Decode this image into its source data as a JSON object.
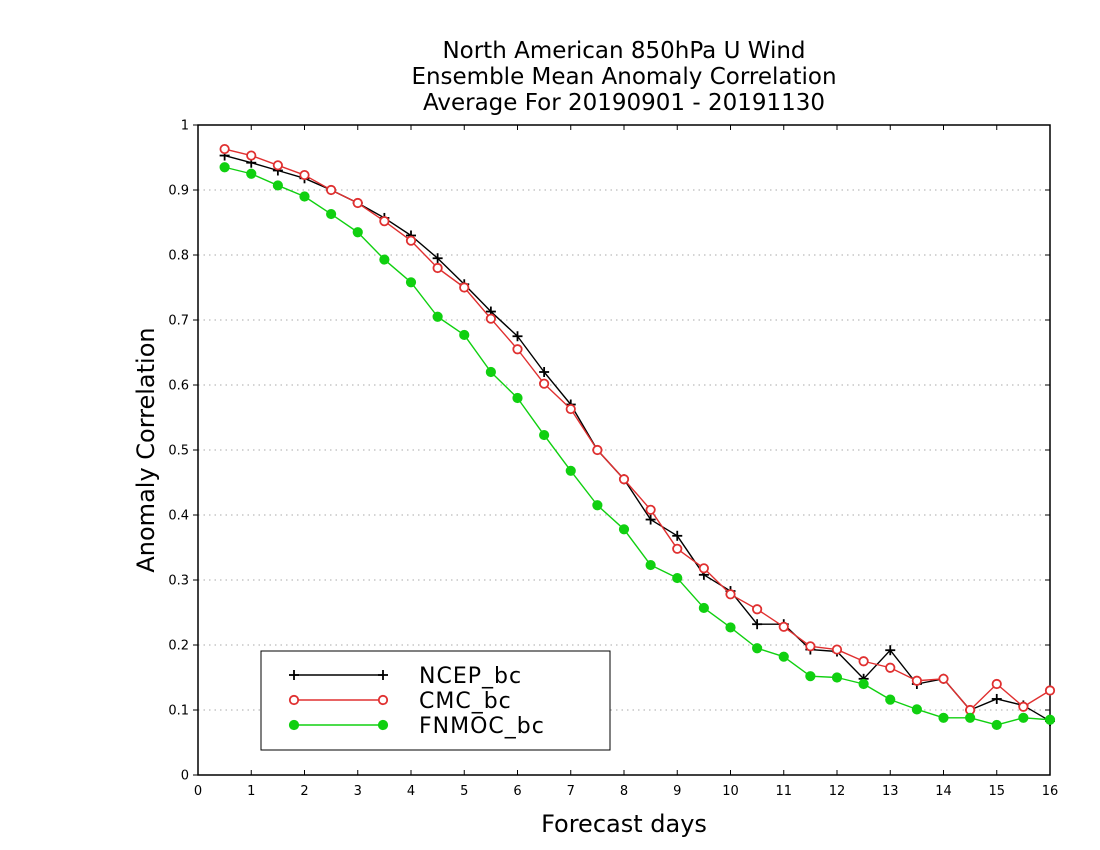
{
  "chart_data": {
    "type": "line",
    "title": [
      "North American 850hPa U Wind",
      "Ensemble Mean Anomaly Correlation",
      "Average For 20190901 - 20191130"
    ],
    "xlabel": "Forecast days",
    "ylabel": "Anomaly Correlation",
    "xlim": [
      0,
      16
    ],
    "ylim": [
      0,
      1
    ],
    "xticks": [
      "0",
      "1",
      "2",
      "3",
      "4",
      "5",
      "6",
      "7",
      "8",
      "9",
      "10",
      "11",
      "12",
      "13",
      "14",
      "15",
      "16"
    ],
    "yticks": [
      "0",
      "0.1",
      "0.2",
      "0.3",
      "0.4",
      "0.5",
      "0.6",
      "0.7",
      "0.8",
      "0.9",
      "1"
    ],
    "grid": "horizontal-dotted",
    "legend_position": "bottom-left",
    "x": [
      0.5,
      1,
      1.5,
      2,
      2.5,
      3,
      3.5,
      4,
      4.5,
      5,
      5.5,
      6,
      6.5,
      7,
      7.5,
      8,
      8.5,
      9,
      9.5,
      10,
      10.5,
      11,
      11.5,
      12,
      12.5,
      13,
      13.5,
      14,
      14.5,
      15,
      15.5,
      16
    ],
    "series": [
      {
        "name": "NCEP_bc",
        "color": "#000000",
        "marker": "plus",
        "values": [
          0.953,
          0.942,
          0.93,
          0.918,
          0.9,
          0.88,
          0.857,
          0.83,
          0.795,
          0.755,
          0.713,
          0.675,
          0.62,
          0.57,
          0.5,
          0.455,
          0.393,
          0.368,
          0.308,
          0.283,
          0.232,
          0.232,
          0.193,
          0.19,
          0.148,
          0.192,
          0.14,
          0.148,
          0.1,
          0.117,
          0.107,
          0.083
        ]
      },
      {
        "name": "CMC_bc",
        "color": "#e03030",
        "marker": "circle-open",
        "values": [
          0.963,
          0.953,
          0.938,
          0.923,
          0.9,
          0.88,
          0.852,
          0.822,
          0.78,
          0.75,
          0.702,
          0.655,
          0.602,
          0.563,
          0.5,
          0.455,
          0.408,
          0.348,
          0.318,
          0.278,
          0.255,
          0.228,
          0.198,
          0.193,
          0.175,
          0.165,
          0.145,
          0.148,
          0.1,
          0.14,
          0.105,
          0.13
        ]
      },
      {
        "name": "FNMOC_bc",
        "color": "#10d010",
        "marker": "circle-filled",
        "values": [
          0.935,
          0.925,
          0.907,
          0.89,
          0.863,
          0.835,
          0.793,
          0.758,
          0.705,
          0.677,
          0.62,
          0.58,
          0.523,
          0.468,
          0.415,
          0.378,
          0.323,
          0.303,
          0.257,
          0.227,
          0.195,
          0.182,
          0.152,
          0.15,
          0.14,
          0.116,
          0.101,
          0.088,
          0.088,
          0.077,
          0.088,
          0.085
        ]
      }
    ]
  }
}
